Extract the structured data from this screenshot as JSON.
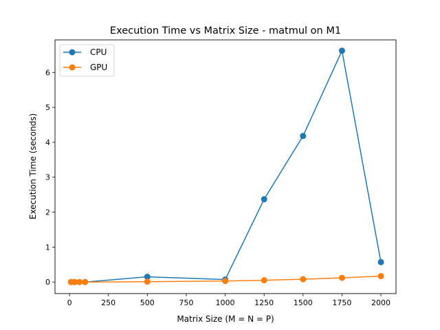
{
  "chart_data": {
    "type": "line",
    "title": "Execution Time vs Matrix Size - matmul on M1",
    "xlabel": "Matrix Size (M = N = P)",
    "ylabel": "Execution Time (seconds)",
    "xlim": [
      -93,
      2097
    ],
    "ylim": [
      -0.33,
      6.93
    ],
    "xticks": [
      0,
      250,
      500,
      750,
      1000,
      1250,
      1500,
      1750,
      2000
    ],
    "yticks": [
      0,
      1,
      2,
      3,
      4,
      5,
      6
    ],
    "grid": false,
    "legend_position": "top-left",
    "x": [
      10,
      32,
      64,
      100,
      500,
      1000,
      1250,
      1500,
      1750,
      2000
    ],
    "series": [
      {
        "name": "CPU",
        "color": "#1f77b4",
        "values": [
          0.0,
          0.0,
          0.0,
          0.0,
          0.15,
          0.07,
          2.37,
          4.18,
          6.62,
          0.57
        ]
      },
      {
        "name": "GPU",
        "color": "#ff7f0e",
        "values": [
          0.0,
          0.0,
          0.0,
          0.0,
          0.01,
          0.03,
          0.05,
          0.08,
          0.12,
          0.17
        ]
      }
    ]
  }
}
